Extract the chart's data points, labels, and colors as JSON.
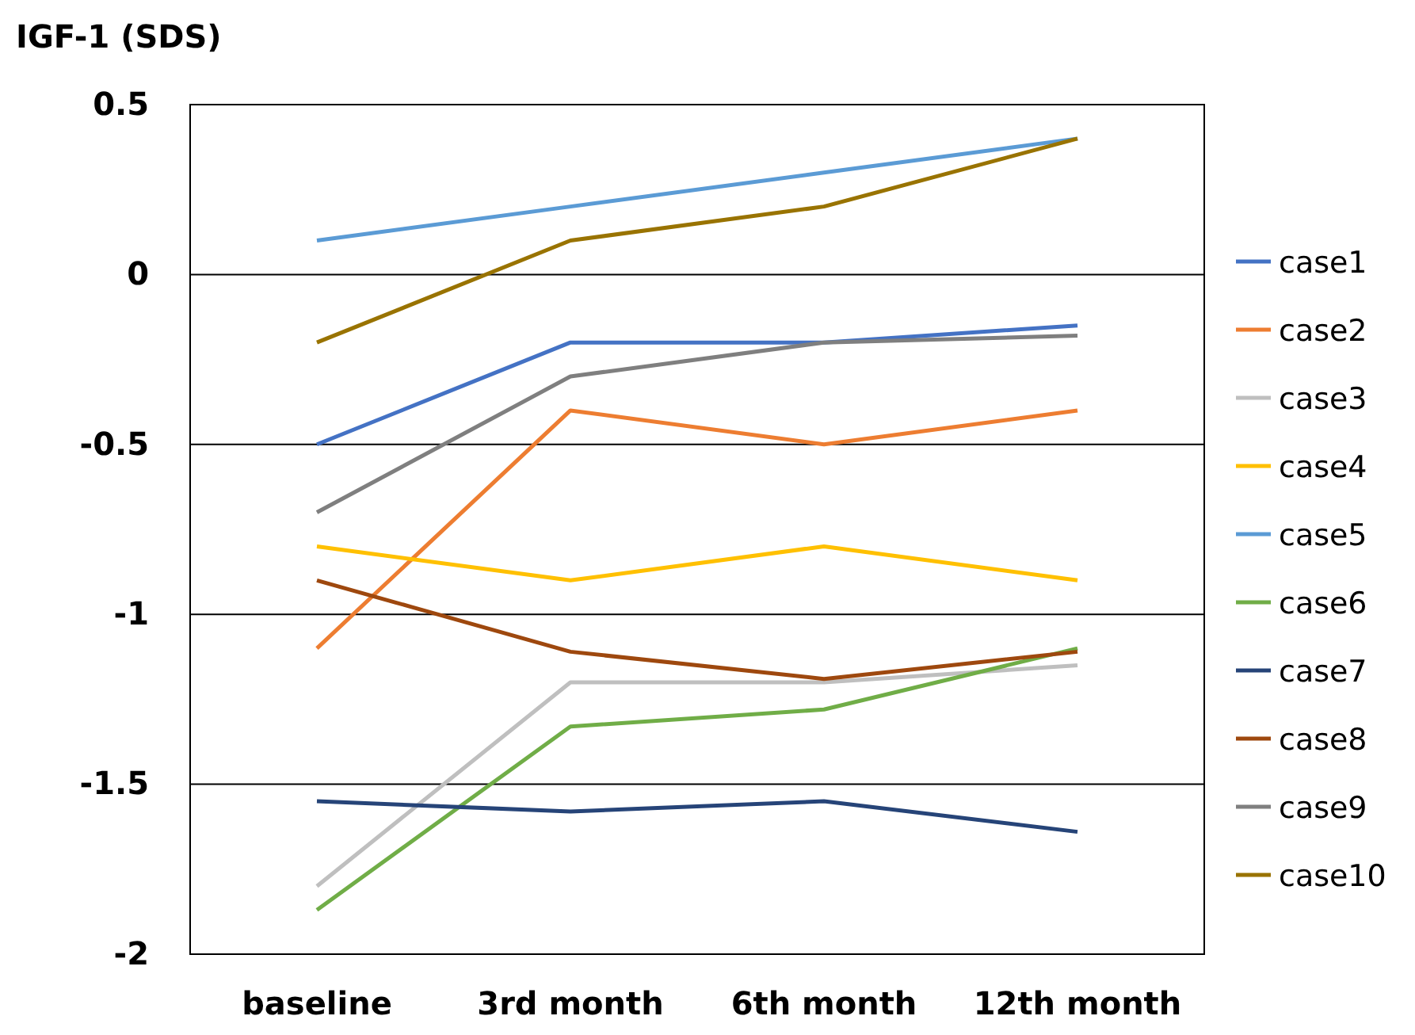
{
  "chart_data": {
    "type": "line",
    "title": "IGF-1 (SDS)",
    "categories": [
      "baseline",
      "3rd month",
      "6th month",
      "12th month"
    ],
    "series": [
      {
        "name": "case1",
        "color": "#4472c4",
        "values": [
          -0.5,
          -0.2,
          -0.2,
          -0.15
        ]
      },
      {
        "name": "case2",
        "color": "#ed7d31",
        "values": [
          -1.1,
          -0.4,
          -0.5,
          -0.4
        ]
      },
      {
        "name": "case3",
        "color": "#bfbfbf",
        "values": [
          -1.8,
          -1.2,
          -1.2,
          -1.15
        ]
      },
      {
        "name": "case4",
        "color": "#ffc000",
        "values": [
          -0.8,
          -0.9,
          -0.8,
          -0.9
        ]
      },
      {
        "name": "case5",
        "color": "#5b9bd5",
        "values": [
          0.1,
          0.2,
          0.3,
          0.4
        ]
      },
      {
        "name": "case6",
        "color": "#70ad47",
        "values": [
          -1.87,
          -1.33,
          -1.28,
          -1.1
        ]
      },
      {
        "name": "case7",
        "color": "#264478",
        "values": [
          -1.55,
          -1.58,
          -1.55,
          -1.64
        ]
      },
      {
        "name": "case8",
        "color": "#9e480e",
        "values": [
          -0.9,
          -1.11,
          -1.19,
          -1.11
        ]
      },
      {
        "name": "case9",
        "color": "#7f7f7f",
        "values": [
          -0.7,
          -0.3,
          -0.2,
          -0.18
        ]
      },
      {
        "name": "case10",
        "color": "#997300",
        "values": [
          -0.2,
          0.1,
          0.2,
          0.4
        ]
      }
    ],
    "ylim": [
      -2,
      0.5
    ],
    "yticks": [
      -2,
      -1.5,
      -1,
      -0.5,
      0,
      0.5
    ],
    "grid": "y",
    "legend": "right",
    "marker": "none",
    "line_style": "solid"
  }
}
